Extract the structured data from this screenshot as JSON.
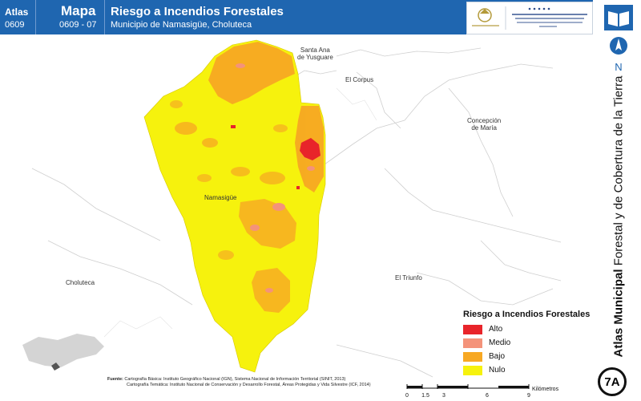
{
  "header": {
    "atlas_label": "Atlas",
    "atlas_code": "0609",
    "map_label": "Mapa",
    "map_code": "0609 - 07",
    "title": "Riesgo a Incendios Forestales",
    "subtitle": "Municipio de Namasigüe, Choluteca"
  },
  "side": {
    "north_letter": "N",
    "vertical_title_bold": "Atlas Municipal",
    "vertical_title_rest": " Forestal y de Cobertura de la Tierra",
    "badge": "7A"
  },
  "places": {
    "santa_ana": "Santa Ana",
    "santa_ana_2": "de Yusguare",
    "el_corpus": "El Corpus",
    "concepcion": "Concepción",
    "concepcion_2": "de María",
    "namasigue": "Namasigüe",
    "choluteca": "Choluteca",
    "el_triunfo": "El Triunfo"
  },
  "legend": {
    "title": "Riesgo a Incendios Forestales",
    "items": [
      {
        "label": "Alto",
        "color": "#e8242a"
      },
      {
        "label": "Medio",
        "color": "#f4937a"
      },
      {
        "label": "Bajo",
        "color": "#f7a823"
      },
      {
        "label": "Nulo",
        "color": "#f6f20d"
      }
    ]
  },
  "source": {
    "label": "Fuente:",
    "line1": "Cartografía Básica: Instituto Geográfico Nacional (IGN), Sistema Nacional de Información Territorial (SINIT, 2013)",
    "line2": "Cartografía Temática: Instituto Nacional de Conservación y Desarrollo Forestal, Áreas Protegidas y Vida Silvestre (ICF, 2014)"
  },
  "scale": {
    "ticks": [
      "0",
      "1.5",
      "3",
      "6",
      "9"
    ],
    "unit": "Kilómetros"
  },
  "colors": {
    "header": "#1f66b0",
    "alto": "#e8242a",
    "medio": "#f4937a",
    "bajo": "#f7a823",
    "nulo": "#f6f20d"
  }
}
